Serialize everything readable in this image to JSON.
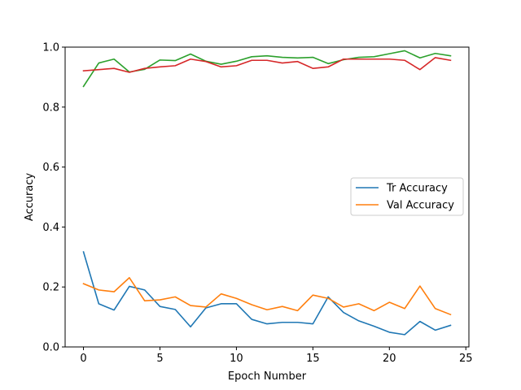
{
  "chart_data": {
    "type": "line",
    "title": "",
    "xlabel": "Epoch Number",
    "ylabel": "Accuracy",
    "xlim": [
      -1.2,
      25.2
    ],
    "ylim": [
      0.0,
      1.0
    ],
    "xticks": [
      0,
      5,
      10,
      15,
      20,
      25
    ],
    "yticks": [
      0.0,
      0.2,
      0.4,
      0.6,
      0.8,
      1.0
    ],
    "xtick_labels": [
      "0",
      "5",
      "10",
      "15",
      "20",
      "25"
    ],
    "ytick_labels": [
      "0.0",
      "0.2",
      "0.4",
      "0.6",
      "0.8",
      "1.0"
    ],
    "grid": false,
    "legend_position": "center-right",
    "x": [
      0,
      1,
      2,
      3,
      4,
      5,
      6,
      7,
      8,
      9,
      10,
      11,
      12,
      13,
      14,
      15,
      16,
      17,
      18,
      19,
      20,
      21,
      22,
      23,
      24
    ],
    "series": [
      {
        "name": "Tr Accuracy",
        "color": "#1f77b4",
        "values": [
          0.317,
          0.144,
          0.123,
          0.202,
          0.19,
          0.135,
          0.125,
          0.067,
          0.13,
          0.144,
          0.144,
          0.092,
          0.077,
          0.082,
          0.082,
          0.077,
          0.167,
          0.115,
          0.087,
          0.069,
          0.049,
          0.041,
          0.085,
          0.056,
          0.072
        ]
      },
      {
        "name": "Val Accuracy",
        "color": "#ff7f0e",
        "values": [
          0.211,
          0.19,
          0.184,
          0.231,
          0.154,
          0.157,
          0.167,
          0.138,
          0.133,
          0.177,
          0.162,
          0.141,
          0.124,
          0.135,
          0.121,
          0.173,
          0.162,
          0.133,
          0.144,
          0.121,
          0.149,
          0.128,
          0.203,
          0.128,
          0.108
        ]
      },
      {
        "color": "#2ca02c",
        "values": [
          0.869,
          0.947,
          0.96,
          0.917,
          0.926,
          0.957,
          0.955,
          0.977,
          0.953,
          0.943,
          0.953,
          0.968,
          0.971,
          0.966,
          0.964,
          0.966,
          0.945,
          0.958,
          0.966,
          0.968,
          0.978,
          0.988,
          0.964,
          0.979,
          0.971
        ]
      },
      {
        "color": "#d62728",
        "values": [
          0.921,
          0.925,
          0.929,
          0.916,
          0.929,
          0.934,
          0.938,
          0.96,
          0.952,
          0.934,
          0.938,
          0.956,
          0.956,
          0.947,
          0.952,
          0.929,
          0.934,
          0.96,
          0.96,
          0.96,
          0.96,
          0.956,
          0.925,
          0.965,
          0.956
        ]
      }
    ],
    "legend_series": [
      0,
      1
    ]
  }
}
